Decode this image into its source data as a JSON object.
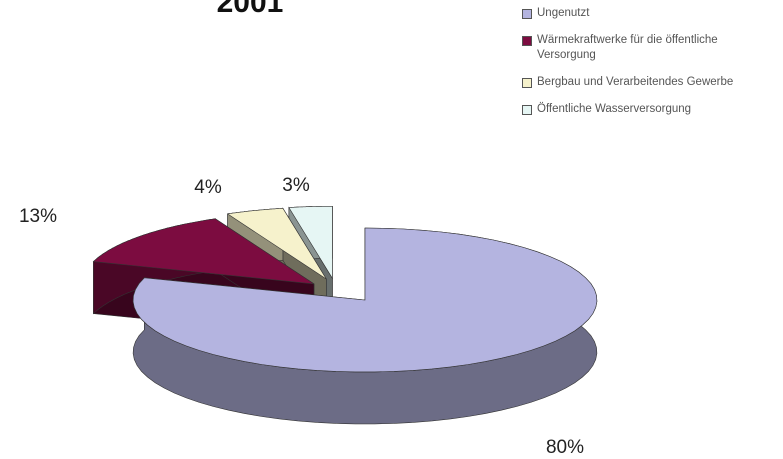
{
  "chart_data": {
    "type": "pie3d",
    "title": "2001",
    "categories": [
      "Ungenutzt",
      "Wärmekraftwerke für die öffentliche Versorgung",
      "Bergbau und Verarbeitendes Gewerbe",
      "Öffentliche Wasserversorgung"
    ],
    "values": [
      80,
      13,
      4,
      3
    ],
    "value_labels": [
      "80%",
      "13%",
      "4%",
      "3%"
    ],
    "colors": [
      "#b4b4e0",
      "#7c0c40",
      "#f6f2cc",
      "#e6f6f4"
    ],
    "legend": "right"
  }
}
